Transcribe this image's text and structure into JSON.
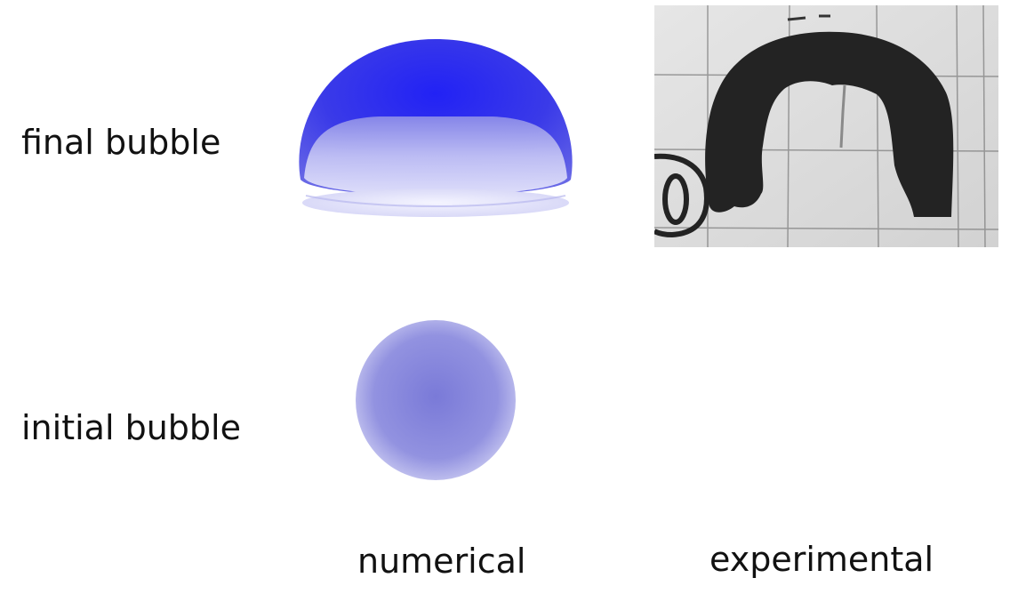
{
  "rows": {
    "final": "final bubble",
    "initial": "initial bubble"
  },
  "columns": {
    "numerical": "numerical",
    "experimental": "experimental"
  },
  "colors": {
    "bubble_dark": "#2a2af0",
    "bubble_light": "#c8c8f6",
    "bubble_initial": "#9494e2",
    "photo_bg": "#dcdcdc",
    "photo_ink": "#222222"
  }
}
